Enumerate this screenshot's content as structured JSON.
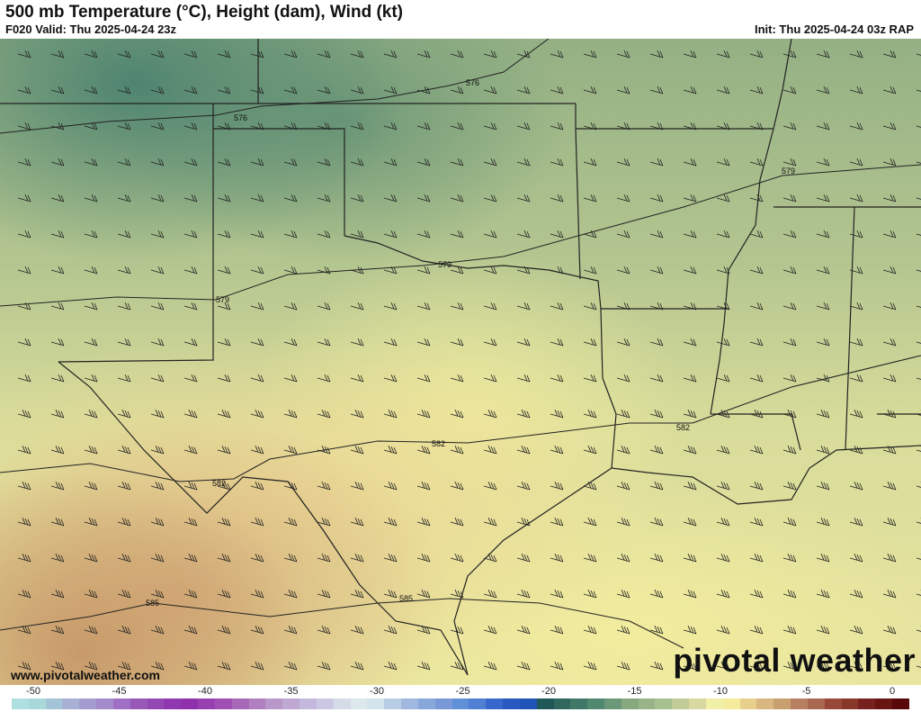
{
  "header": {
    "title": "500 mb Temperature (°C), Height (dam), Wind (kt)",
    "valid": "F020 Valid: Thu 2025-04-24 23z",
    "init": "Init: Thu 2025-04-24 03z RAP"
  },
  "map": {
    "region": "South Central US",
    "contour_labels": [
      "576",
      "576",
      "579",
      "579",
      "579",
      "582",
      "582",
      "582",
      "585",
      "585"
    ],
    "watermark_site": "www.pivotalweather.com",
    "logo": "pivotal weather"
  },
  "colorbar": {
    "unit": "°C",
    "ticks": [
      "-50",
      "-45",
      "-40",
      "-35",
      "-30",
      "-25",
      "-20",
      "-15",
      "-10",
      "-5",
      "0"
    ],
    "colors": [
      "#aee0e0",
      "#a8d8d8",
      "#a4c4d8",
      "#a8b0d4",
      "#a49cd0",
      "#a48ccc",
      "#a070c4",
      "#9858b8",
      "#9448b4",
      "#9038b0",
      "#9030ac",
      "#9840b0",
      "#a050b4",
      "#a868b8",
      "#b080c0",
      "#b898c8",
      "#c0a8d4",
      "#c4b8dc",
      "#ccc8e4",
      "#d4dce8",
      "#dce8ec",
      "#d4e4ec",
      "#b8cce4",
      "#a0b8e0",
      "#88a8dc",
      "#7898d8",
      "#6090d8",
      "#5080d4",
      "#3868cc",
      "#2858c0",
      "#1f55b8",
      "#205858",
      "#306860",
      "#407868",
      "#508870",
      "#6a9878",
      "#88a880",
      "#98b488",
      "#a8c090",
      "#c0cc98",
      "#d8d8a0",
      "#f0f0a8",
      "#f4ec9c",
      "#e8d08c",
      "#d8b880",
      "#c8a070",
      "#b88060",
      "#a86850",
      "#984838",
      "#883828",
      "#782020",
      "#681410",
      "#580808"
    ]
  }
}
